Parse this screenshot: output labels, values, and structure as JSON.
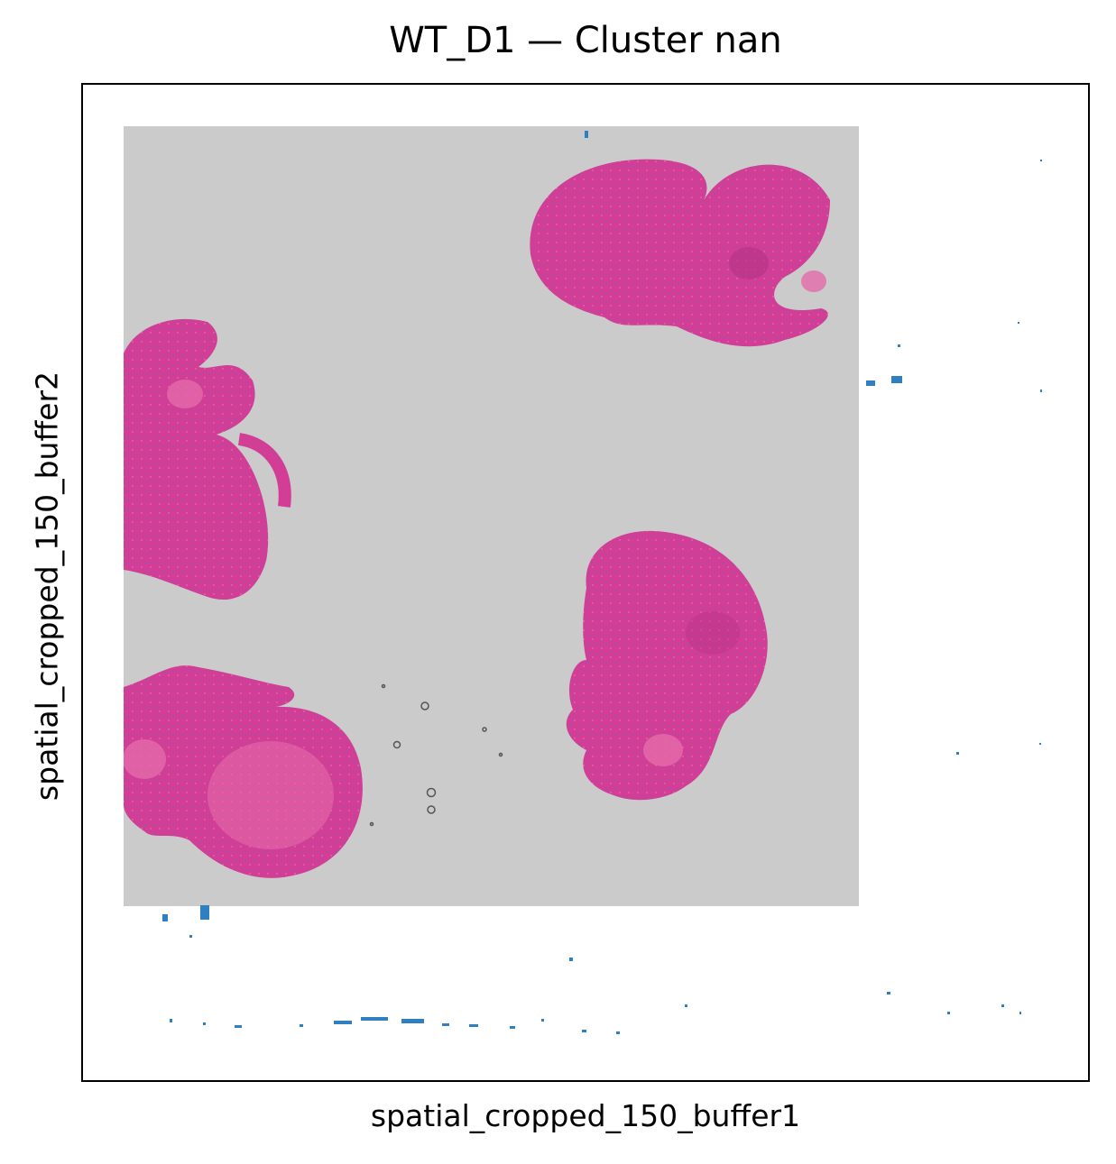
{
  "chart_data": {
    "type": "scatter",
    "title": "WT_D1 — Cluster nan",
    "xlabel": "spatial_cropped_150_buffer1",
    "ylabel": "spatial_cropped_150_buffer2",
    "xticks": [],
    "yticks": [],
    "grid": false,
    "legend": "none",
    "background_image": "H&E stained tissue section with four heart-shaped tissue samples",
    "colors": {
      "slide_background": "#cbcbcc",
      "tissue": "#d23e96",
      "tissue_light": "#e46aa9",
      "spots": "#2f7fc1"
    }
  }
}
